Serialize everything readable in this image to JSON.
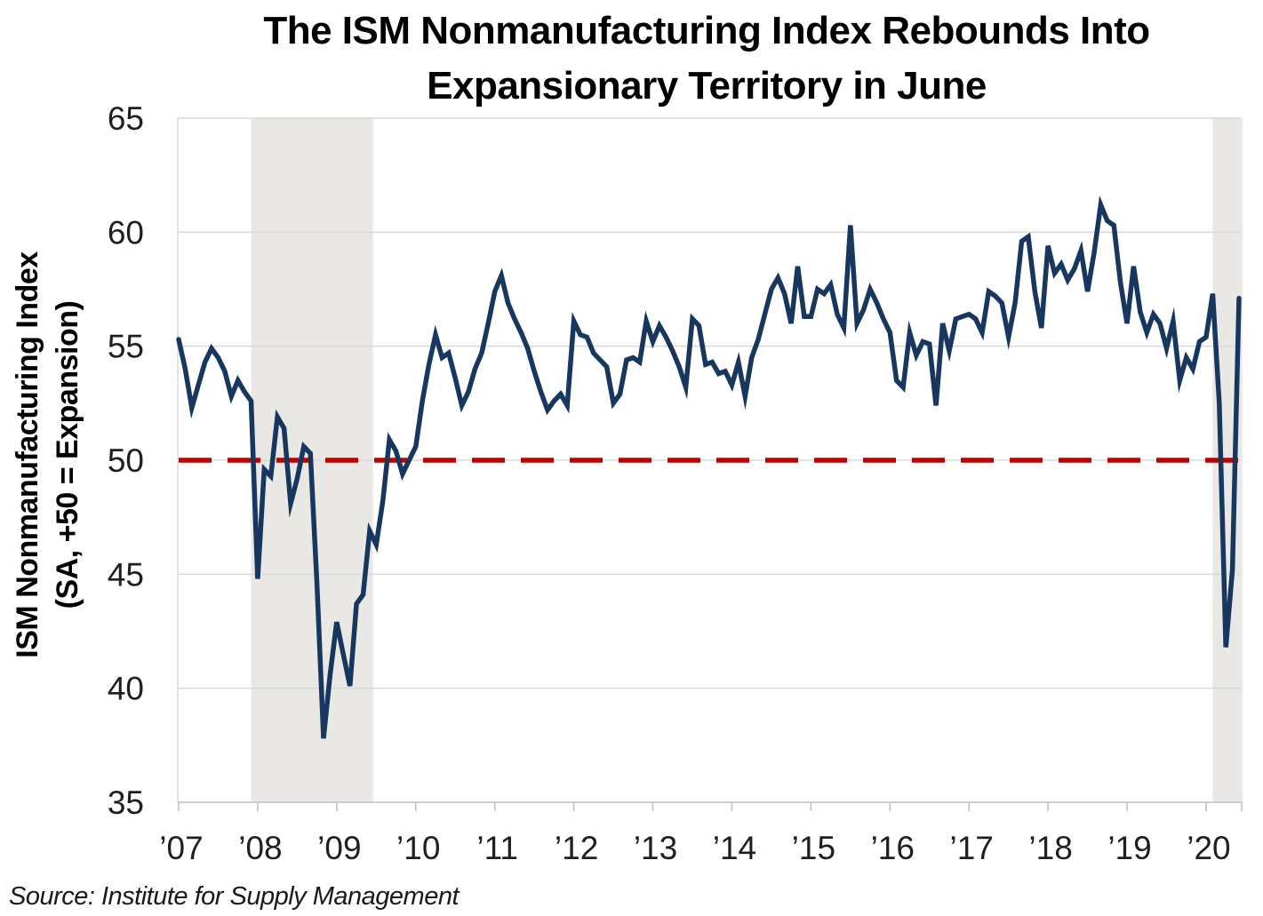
{
  "title": {
    "line1": "The ISM Nonmanufacturing Index Rebounds Into",
    "line2": "Expansionary Territory in June"
  },
  "source": "Source: Institute for Supply Management",
  "y_axis": {
    "title_line1": "ISM Nonmanufacturing Index",
    "title_line2": "(SA, +50 = Expansion)",
    "ticks": [
      35,
      40,
      45,
      50,
      55,
      60,
      65
    ]
  },
  "x_axis": {
    "tick_labels": [
      "’07",
      "’08",
      "’09",
      "’10",
      "’11",
      "’12",
      "’13",
      "’14",
      "’15",
      "’16",
      "’17",
      "’18",
      "’19",
      "’20"
    ]
  },
  "colors": {
    "series_line": "#17375E",
    "reference_line": "#C00000",
    "recession_band": "#E9E8E4",
    "gridline": "#D9D9D9",
    "axis_line": "#BFBFBF",
    "tick_text": "#1f1f1f"
  },
  "chart_data": {
    "type": "line",
    "title": "The ISM Nonmanufacturing Index Rebounds Into Expansionary Territory in June",
    "ylabel": "ISM Nonmanufacturing Index (SA, +50 = Expansion)",
    "ylim": [
      35,
      65
    ],
    "grid": "horizontal",
    "legend": "none",
    "x": {
      "start": "2007-01",
      "end": "2020-06",
      "frequency": "monthly",
      "points": 162
    },
    "reference_line": {
      "value": 50,
      "style": "dashed",
      "color": "#C00000",
      "meaning": "50 = expansion threshold"
    },
    "recession_bands": [
      {
        "start": "2007-12",
        "end": "2009-06"
      },
      {
        "start": "2020-02",
        "end": "2020-06"
      }
    ],
    "series": [
      {
        "name": "ISM Nonmanufacturing Index (SA)",
        "color": "#17375E",
        "values": [
          55.3,
          54.0,
          52.3,
          53.3,
          54.3,
          54.9,
          54.5,
          53.9,
          52.8,
          53.5,
          53.0,
          52.6,
          44.8,
          49.6,
          49.3,
          51.9,
          51.4,
          48.1,
          49.2,
          50.6,
          50.3,
          44.6,
          37.8,
          40.6,
          42.9,
          41.5,
          40.1,
          43.7,
          44.1,
          46.9,
          46.3,
          48.2,
          50.9,
          50.4,
          49.4,
          50.0,
          50.6,
          52.6,
          54.2,
          55.5,
          54.5,
          54.7,
          53.6,
          52.4,
          53.0,
          54.0,
          54.7,
          56.0,
          57.4,
          58.1,
          56.9,
          56.2,
          55.6,
          54.9,
          53.9,
          53.0,
          52.2,
          52.6,
          52.9,
          52.4,
          56.1,
          55.5,
          55.4,
          54.7,
          54.4,
          54.1,
          52.5,
          52.9,
          54.4,
          54.5,
          54.3,
          56.1,
          55.2,
          55.9,
          55.4,
          54.8,
          54.1,
          53.2,
          56.2,
          55.9,
          54.2,
          54.3,
          53.8,
          53.9,
          53.3,
          54.3,
          52.8,
          54.5,
          55.3,
          56.4,
          57.5,
          58.0,
          57.3,
          56.0,
          58.5,
          56.3,
          56.3,
          57.5,
          57.3,
          57.7,
          56.4,
          55.8,
          60.3,
          56.0,
          56.6,
          57.5,
          56.9,
          56.2,
          55.6,
          53.5,
          53.2,
          55.6,
          54.6,
          55.2,
          55.1,
          52.4,
          56.0,
          54.8,
          56.2,
          56.3,
          56.4,
          56.2,
          55.6,
          57.4,
          57.2,
          56.9,
          55.4,
          56.9,
          59.6,
          59.8,
          57.4,
          55.8,
          59.4,
          58.2,
          58.6,
          57.9,
          58.4,
          59.2,
          57.4,
          59.1,
          61.2,
          60.5,
          60.3,
          57.8,
          56.0,
          58.5,
          56.5,
          55.6,
          56.4,
          56.0,
          54.9,
          56.1,
          53.5,
          54.5,
          54.0,
          55.2,
          55.4,
          57.3,
          52.5,
          41.8,
          45.2,
          57.1
        ]
      }
    ]
  }
}
